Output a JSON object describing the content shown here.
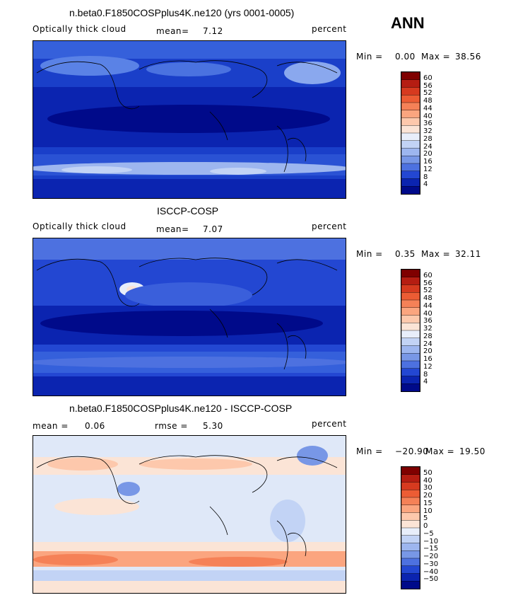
{
  "season": "ANN",
  "chart_data": [
    {
      "type": "heatmap",
      "title": "n.beta0.F1850COSPplus4K.ne120 (yrs 0001-0005)",
      "field": "Optically thick cloud",
      "units": "percent",
      "mean_label": "mean=",
      "mean": "7.12",
      "min_label": "Min =",
      "min": "0.00",
      "max_label": "Max =",
      "max": "38.56",
      "levels": [
        "60",
        "56",
        "52",
        "48",
        "44",
        "40",
        "36",
        "32",
        "28",
        "24",
        "20",
        "16",
        "12",
        "8",
        "4"
      ],
      "colors": [
        "#7f0000",
        "#b51d12",
        "#d63a1f",
        "#ec5c34",
        "#f58157",
        "#fba57f",
        "#fdc8ac",
        "#fbe4d6",
        "#e8eefa",
        "#c2d3f5",
        "#9db6ef",
        "#7897e6",
        "#4d71e0",
        "#2347d2",
        "#0b24b0",
        "#000a8a"
      ]
    },
    {
      "type": "heatmap",
      "title": "ISCCP-COSP",
      "field": "Optically thick cloud",
      "units": "percent",
      "mean_label": "mean=",
      "mean": "7.07",
      "min_label": "Min =",
      "min": "0.35",
      "max_label": "Max =",
      "max": "32.11",
      "levels": [
        "60",
        "56",
        "52",
        "48",
        "44",
        "40",
        "36",
        "32",
        "28",
        "24",
        "20",
        "16",
        "12",
        "8",
        "4"
      ],
      "colors": [
        "#7f0000",
        "#b51d12",
        "#d63a1f",
        "#ec5c34",
        "#f58157",
        "#fba57f",
        "#fdc8ac",
        "#fbe4d6",
        "#e8eefa",
        "#c2d3f5",
        "#9db6ef",
        "#7897e6",
        "#4d71e0",
        "#2347d2",
        "#0b24b0",
        "#000a8a"
      ]
    },
    {
      "type": "heatmap",
      "title": "n.beta0.F1850COSPplus4K.ne120 - ISCCP-COSP",
      "units": "percent",
      "mean_label": "mean =",
      "mean": "0.06",
      "rmse_label": "rmse =",
      "rmse": "5.30",
      "min_label": "Min =",
      "min": "−20.90",
      "max_label": "Max =",
      "max": "19.50",
      "levels": [
        "50",
        "40",
        "30",
        "20",
        "15",
        "10",
        "5",
        "0",
        "−5",
        "−10",
        "−15",
        "−20",
        "−30",
        "−40",
        "−50"
      ],
      "colors": [
        "#7f0000",
        "#b51d12",
        "#d63a1f",
        "#ec5c34",
        "#f58157",
        "#fba57f",
        "#fdc8ac",
        "#fbe4d6",
        "#e8eefa",
        "#c2d3f5",
        "#9db6ef",
        "#7897e6",
        "#4d71e0",
        "#2347d2",
        "#0b24b0",
        "#000a8a"
      ]
    }
  ]
}
